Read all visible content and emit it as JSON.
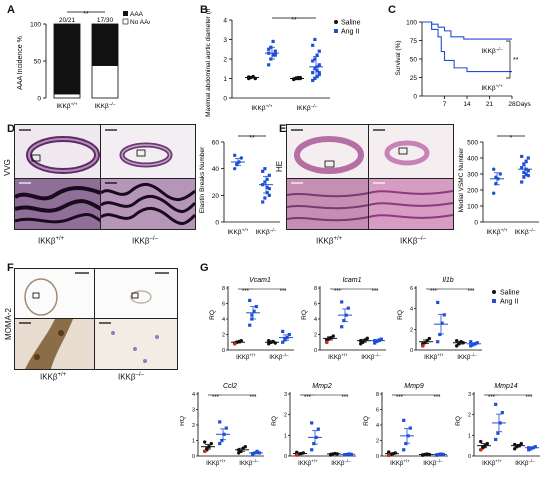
{
  "panels": {
    "A": {
      "label": "A",
      "ylabel": "AAA Incidence %",
      "fractions": [
        "20/21",
        "17/30"
      ],
      "sig": "**",
      "legend": [
        "AAA",
        "No AAA"
      ],
      "xticks": [
        "IKKβ",
        "IKKβ"
      ],
      "genotypes": [
        "+/+",
        "–/–"
      ],
      "yticks": [
        "0",
        "50",
        "100"
      ]
    },
    "B": {
      "label": "B",
      "ylabel": "Maximal abdominal aortic diameter (mm)",
      "sig": "**",
      "legend": [
        "Saline",
        "Ang II"
      ],
      "yticks": [
        "0",
        "1",
        "2",
        "3",
        "4"
      ],
      "xticks": [
        "IKKβ",
        "IKKβ"
      ],
      "genotypes": [
        "+/+",
        "–/–"
      ]
    },
    "C": {
      "label": "C",
      "ylabel": "Survival (%)",
      "yticks": [
        "0",
        "25",
        "50",
        "75",
        "100"
      ],
      "xticks": [
        "7",
        "14",
        "21",
        "28"
      ],
      "xunit": "Days",
      "line_labels": [
        "IKKβ",
        "IKKβ"
      ],
      "genotypes": [
        "–/–",
        "+/+"
      ],
      "sig": "**"
    },
    "D": {
      "label": "D",
      "stain": "VVG",
      "ylabel": "Elastin Breaks Number",
      "yticks": [
        "0",
        "20",
        "40",
        "60"
      ],
      "sig": "**",
      "xticks": [
        "IKKβ",
        "IKKβ"
      ],
      "genotypes": [
        "+/+",
        "–/–"
      ],
      "image_label": "IKKβ",
      "image_genotypes": [
        "+/+",
        "–/–"
      ]
    },
    "E": {
      "label": "E",
      "stain": "HE",
      "ylabel": "Medial VSMC Number",
      "yticks": [
        "0",
        "100",
        "200",
        "300",
        "400",
        "500"
      ],
      "sig": "*",
      "xticks": [
        "IKKβ",
        "IKKβ"
      ],
      "genotypes": [
        "+/+",
        "–/–"
      ],
      "image_label": "IKKβ",
      "image_genotypes": [
        "+/+",
        "–/–"
      ]
    },
    "F": {
      "label": "F",
      "stain": "MOMA-2",
      "image_label": "IKKβ",
      "image_genotypes": [
        "+/+",
        "–/–"
      ]
    },
    "G": {
      "label": "G",
      "ylabel": "RQ",
      "legend": [
        "Saline",
        "Ang II"
      ],
      "sig": "***",
      "xticks": [
        "IKKβ",
        "IKKβ"
      ],
      "genotypes": [
        "+/+",
        "–/–"
      ]
    }
  },
  "chart_data": [
    {
      "type": "bar",
      "panel": "A",
      "categories": [
        "IKKβ+/+",
        "IKKβ–/–"
      ],
      "series": [
        {
          "name": "AAA",
          "values": [
            95.2,
            56.7
          ]
        },
        {
          "name": "No AAA",
          "values": [
            4.8,
            43.3
          ]
        }
      ],
      "ylabel": "AAA Incidence %",
      "ylim": [
        0,
        100
      ]
    },
    {
      "type": "scatter",
      "panel": "B",
      "ylabel": "Maximal abdominal aortic diameter (mm)",
      "ylim": [
        0,
        4
      ],
      "groups": [
        {
          "genotype": "IKKβ+/+",
          "series": "Saline",
          "mean": 1.05,
          "values": [
            1.0,
            1.05,
            1.1,
            1.0,
            1.08
          ]
        },
        {
          "genotype": "IKKβ+/+",
          "series": "Ang II",
          "mean": 2.3,
          "values": [
            1.7,
            2.0,
            2.2,
            2.4,
            2.5,
            2.6,
            2.9,
            2.2,
            2.3
          ]
        },
        {
          "genotype": "IKKβ–/–",
          "series": "Saline",
          "mean": 1.0,
          "values": [
            0.95,
            1.0,
            1.05,
            1.0,
            0.98,
            1.02,
            1.0,
            1.05
          ]
        },
        {
          "genotype": "IKKβ–/–",
          "series": "Ang II",
          "mean": 1.6,
          "values": [
            0.9,
            1.0,
            1.1,
            1.2,
            1.3,
            1.5,
            1.6,
            1.7,
            1.9,
            2.0,
            2.2,
            2.4,
            2.7,
            3.0,
            1.4,
            1.3
          ]
        }
      ]
    },
    {
      "type": "line",
      "panel": "C",
      "ylabel": "Survival (%)",
      "ylim": [
        0,
        100
      ],
      "xlim": [
        0,
        28
      ],
      "series": [
        {
          "name": "IKKβ–/–",
          "x": [
            0,
            3,
            5,
            7,
            9,
            13,
            28
          ],
          "y": [
            100,
            97,
            93,
            88,
            80,
            77,
            77
          ]
        },
        {
          "name": "IKKβ+/+",
          "x": [
            0,
            3,
            5,
            6,
            7,
            10,
            14,
            28
          ],
          "y": [
            100,
            90,
            80,
            60,
            48,
            38,
            33,
            33
          ]
        }
      ]
    },
    {
      "type": "scatter",
      "panel": "D",
      "ylabel": "Elastin Breaks Number",
      "ylim": [
        0,
        60
      ],
      "groups": [
        {
          "genotype": "IKKβ+/+",
          "mean": 45,
          "values": [
            40,
            43,
            45,
            48,
            50,
            44
          ]
        },
        {
          "genotype": "IKKβ–/–",
          "mean": 28,
          "values": [
            15,
            18,
            22,
            25,
            28,
            30,
            32,
            35,
            38,
            40,
            26,
            20
          ]
        }
      ]
    },
    {
      "type": "scatter",
      "panel": "E",
      "ylabel": "Medial VSMC Number",
      "ylim": [
        0,
        500
      ],
      "groups": [
        {
          "genotype": "IKKβ+/+",
          "mean": 270,
          "values": [
            180,
            240,
            270,
            300,
            330,
            280
          ]
        },
        {
          "genotype": "IKKβ–/–",
          "mean": 330,
          "values": [
            250,
            280,
            300,
            320,
            340,
            360,
            380,
            400,
            410,
            310,
            330,
            290
          ]
        }
      ]
    },
    {
      "type": "scatter",
      "panel": "G",
      "ylabel": "RQ",
      "genes": [
        {
          "name": "Vcam1",
          "yticks": [
            "0",
            "2",
            "4",
            "6",
            "8"
          ],
          "ylim": [
            0,
            8
          ],
          "groups": [
            {
              "genotype": "IKKβ+/+",
              "series": "Saline",
              "mean": 1.0,
              "values": [
                0.8,
                1.0,
                1.1,
                1.2,
                0.9,
                1.0
              ]
            },
            {
              "genotype": "IKKβ+/+",
              "series": "Ang II",
              "mean": 4.8,
              "values": [
                3.2,
                4.0,
                5.0,
                5.6,
                6.4,
                4.5
              ]
            },
            {
              "genotype": "IKKβ–/–",
              "series": "Saline",
              "mean": 1.0,
              "values": [
                0.8,
                1.0,
                1.1,
                0.9,
                1.2,
                1.0
              ]
            },
            {
              "genotype": "IKKβ–/–",
              "series": "Ang II",
              "mean": 1.6,
              "values": [
                1.0,
                1.3,
                1.6,
                2.0,
                2.4,
                1.5
              ]
            }
          ]
        },
        {
          "name": "Icam1",
          "yticks": [
            "0",
            "2",
            "4",
            "6",
            "8"
          ],
          "ylim": [
            0,
            8
          ],
          "groups": [
            {
              "genotype": "IKKβ+/+",
              "series": "Saline",
              "mean": 1.5,
              "values": [
                1.0,
                1.4,
                1.6,
                1.8,
                1.3,
                1.5
              ]
            },
            {
              "genotype": "IKKβ+/+",
              "series": "Ang II",
              "mean": 4.5,
              "values": [
                3.0,
                3.8,
                4.5,
                5.4,
                6.2
              ]
            },
            {
              "genotype": "IKKβ–/–",
              "series": "Saline",
              "mean": 1.2,
              "values": [
                0.8,
                1.0,
                1.3,
                1.5,
                1.2
              ]
            },
            {
              "genotype": "IKKβ–/–",
              "series": "Ang II",
              "mean": 1.2,
              "values": [
                0.9,
                1.1,
                1.3,
                1.4,
                1.2
              ]
            }
          ]
        },
        {
          "name": "Il1b",
          "yticks": [
            "0",
            "2",
            "4",
            "6"
          ],
          "ylim": [
            0,
            6
          ],
          "groups": [
            {
              "genotype": "IKKβ+/+",
              "series": "Saline",
              "mean": 0.8,
              "values": [
                0.4,
                0.7,
                0.9,
                1.1,
                0.6
              ]
            },
            {
              "genotype": "IKKβ+/+",
              "series": "Ang II",
              "mean": 2.5,
              "values": [
                0.8,
                1.5,
                2.6,
                3.4,
                4.6
              ]
            },
            {
              "genotype": "IKKβ–/–",
              "series": "Saline",
              "mean": 0.7,
              "values": [
                0.4,
                0.6,
                0.8,
                0.7,
                0.9,
                0.6
              ]
            },
            {
              "genotype": "IKKβ–/–",
              "series": "Ang II",
              "mean": 0.6,
              "values": [
                0.4,
                0.5,
                0.6,
                0.7,
                0.8,
                0.5
              ]
            }
          ]
        },
        {
          "name": "Ccl2",
          "yticks": [
            "0",
            "1",
            "2",
            "3",
            "4"
          ],
          "ylim": [
            0,
            4
          ],
          "groups": [
            {
              "genotype": "IKKβ+/+",
              "series": "Saline",
              "mean": 0.6,
              "values": [
                0.3,
                0.5,
                0.6,
                0.8,
                0.9,
                0.4
              ]
            },
            {
              "genotype": "IKKβ+/+",
              "series": "Ang II",
              "mean": 1.4,
              "values": [
                0.8,
                1.0,
                1.4,
                1.8,
                2.2
              ]
            },
            {
              "genotype": "IKKβ–/–",
              "series": "Saline",
              "mean": 0.4,
              "values": [
                0.2,
                0.3,
                0.5,
                0.6,
                0.4,
                0.3
              ]
            },
            {
              "genotype": "IKKβ–/–",
              "series": "Ang II",
              "mean": 0.2,
              "values": [
                0.1,
                0.2,
                0.3,
                0.2,
                0.15
              ]
            }
          ]
        },
        {
          "name": "Mmp2",
          "yticks": [
            "0",
            "1",
            "2",
            "3"
          ],
          "ylim": [
            0,
            3
          ],
          "groups": [
            {
              "genotype": "IKKβ+/+",
              "series": "Saline",
              "mean": 0.12,
              "values": [
                0.05,
                0.1,
                0.12,
                0.15,
                0.18
              ]
            },
            {
              "genotype": "IKKβ+/+",
              "series": "Ang II",
              "mean": 0.9,
              "values": [
                0.3,
                0.6,
                0.9,
                1.3,
                1.6
              ]
            },
            {
              "genotype": "IKKβ–/–",
              "series": "Saline",
              "mean": 0.1,
              "values": [
                0.05,
                0.1,
                0.12,
                0.1,
                0.08
              ]
            },
            {
              "genotype": "IKKβ–/–",
              "series": "Ang II",
              "mean": 0.08,
              "values": [
                0.05,
                0.07,
                0.1,
                0.08,
                0.06
              ]
            }
          ]
        },
        {
          "name": "Mmp9",
          "yticks": [
            "0",
            "2",
            "4",
            "6",
            "8"
          ],
          "ylim": [
            0,
            8
          ],
          "groups": [
            {
              "genotype": "IKKβ+/+",
              "series": "Saline",
              "mean": 0.3,
              "values": [
                0.1,
                0.2,
                0.3,
                0.4,
                0.5
              ]
            },
            {
              "genotype": "IKKβ+/+",
              "series": "Ang II",
              "mean": 2.6,
              "values": [
                0.8,
                1.6,
                2.6,
                3.6,
                4.6
              ]
            },
            {
              "genotype": "IKKβ–/–",
              "series": "Saline",
              "mean": 0.2,
              "values": [
                0.1,
                0.2,
                0.25,
                0.2,
                0.15
              ]
            },
            {
              "genotype": "IKKβ–/–",
              "series": "Ang II",
              "mean": 0.2,
              "values": [
                0.1,
                0.2,
                0.25,
                0.2,
                0.15
              ]
            }
          ]
        },
        {
          "name": "Mmp14",
          "yticks": [
            "0",
            "1",
            "2",
            "3"
          ],
          "ylim": [
            0,
            3
          ],
          "groups": [
            {
              "genotype": "IKKβ+/+",
              "series": "Saline",
              "mean": 0.5,
              "values": [
                0.3,
                0.4,
                0.5,
                0.6,
                0.7,
                0.45
              ]
            },
            {
              "genotype": "IKKβ+/+",
              "series": "Ang II",
              "mean": 1.6,
              "values": [
                0.8,
                1.1,
                1.6,
                2.1,
                2.5
              ]
            },
            {
              "genotype": "IKKβ–/–",
              "series": "Saline",
              "mean": 0.5,
              "values": [
                0.35,
                0.45,
                0.5,
                0.6,
                0.55
              ]
            },
            {
              "genotype": "IKKβ–/–",
              "series": "Ang II",
              "mean": 0.4,
              "values": [
                0.3,
                0.35,
                0.4,
                0.45,
                0.4
              ]
            }
          ]
        }
      ]
    }
  ],
  "colors": {
    "saline": "#111111",
    "angii": "#1f4fd6",
    "aaa_bar": "#111111",
    "red_dot": "#d62b1f",
    "vvg_bg": "#b58fb8",
    "he_bg": "#d79cc2"
  },
  "icons": [
    "scale-bar-icon"
  ]
}
